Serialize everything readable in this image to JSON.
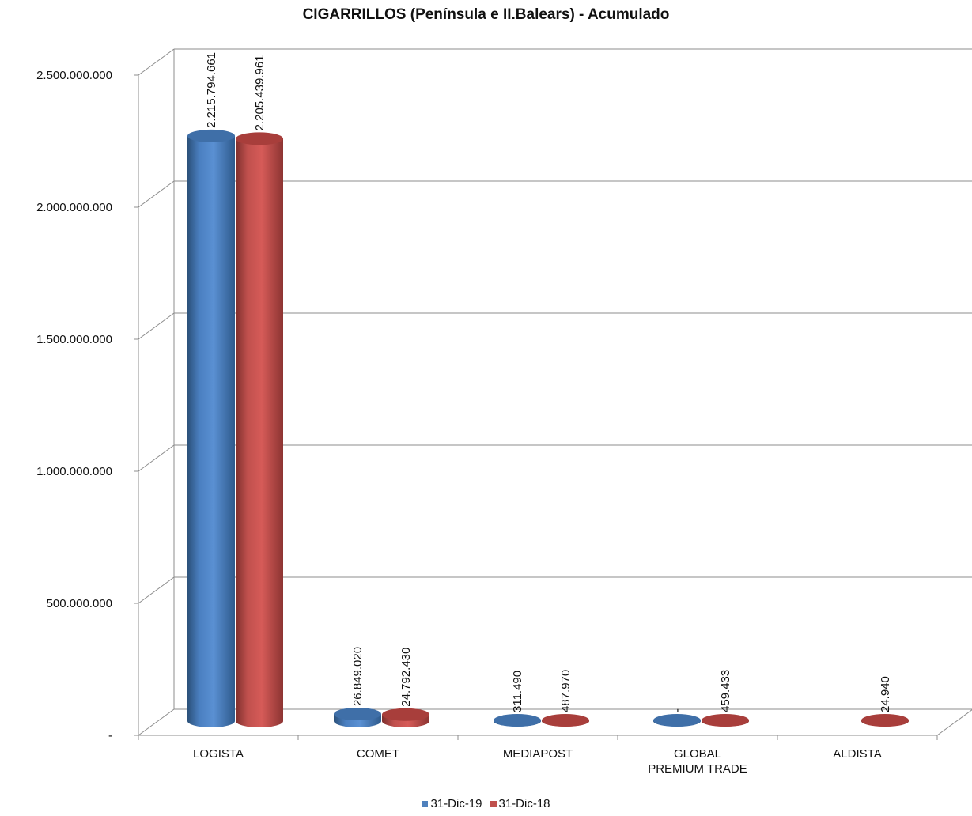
{
  "chart_data": {
    "type": "bar",
    "title": "CIGARRILLOS  (Península e II.Balears) - Acumulado",
    "categories": [
      "LOGISTA",
      "COMET",
      "MEDIAPOST",
      "GLOBAL\nPREMIUM TRADE",
      "ALDISTA"
    ],
    "series": [
      {
        "name": "31-Dic-19",
        "values": [
          2215794661,
          26849020,
          311490,
          0,
          null
        ],
        "labels": [
          "2.215.794.661",
          "26.849.020",
          "311.490",
          "-",
          ""
        ],
        "color": "#4f81bd"
      },
      {
        "name": "31-Dic-18",
        "values": [
          2205439961,
          24792430,
          487970,
          459433,
          24940
        ],
        "labels": [
          "2.205.439.961",
          "24.792.430",
          "487.970",
          "459.433",
          "24.940"
        ],
        "color": "#c0504d"
      }
    ],
    "ylim": [
      0,
      2500000000
    ],
    "yticks": [
      "-",
      "500.000.000",
      "1.000.000.000",
      "1.500.000.000",
      "2.000.000.000",
      "2.500.000.000"
    ],
    "grid": true,
    "legend_position": "bottom"
  }
}
